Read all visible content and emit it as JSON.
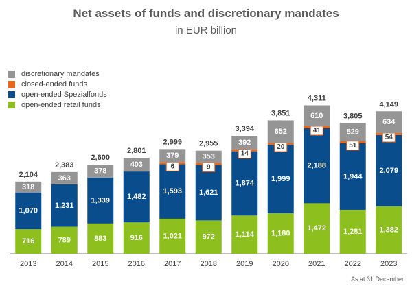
{
  "chart_data": {
    "type": "bar",
    "stacked": true,
    "title": "Net assets of funds and discretionary mandates",
    "subtitle": "in EUR billion",
    "categories": [
      "2013",
      "2014",
      "2015",
      "2016",
      "2017",
      "2018",
      "2019",
      "2020",
      "2021",
      "2022",
      "2023"
    ],
    "series": [
      {
        "name": "open-ended retail funds",
        "color": "#8dbf1e",
        "values": [
          716,
          789,
          883,
          916,
          1021,
          972,
          1114,
          1180,
          1472,
          1281,
          1382
        ],
        "labels": [
          "716",
          "789",
          "883",
          "916",
          "1,021",
          "972",
          "1,114",
          "1,180",
          "1,472",
          "1,281",
          "1,382"
        ]
      },
      {
        "name": "open-ended Spezialfonds",
        "color": "#0a4d8c",
        "values": [
          1070,
          1231,
          1339,
          1482,
          1593,
          1621,
          1874,
          1999,
          2188,
          1944,
          2079
        ],
        "labels": [
          "1,070",
          "1,231",
          "1,339",
          "1,482",
          "1,593",
          "1,621",
          "1,874",
          "1,999",
          "2,188",
          "1,944",
          "2,079"
        ]
      },
      {
        "name": "closed-ended funds",
        "color": "#e8671a",
        "values": [
          null,
          null,
          null,
          null,
          6,
          9,
          14,
          20,
          41,
          51,
          54
        ],
        "labels": [
          "",
          "",
          "",
          "",
          "6",
          "9",
          "14",
          "20",
          "41",
          "51",
          "54"
        ]
      },
      {
        "name": "discretionary mandates",
        "color": "#959595",
        "values": [
          318,
          363,
          378,
          403,
          379,
          353,
          392,
          652,
          610,
          529,
          634
        ],
        "labels": [
          "318",
          "363",
          "378",
          "403",
          "379",
          "353",
          "392",
          "652",
          "610",
          "529",
          "634"
        ]
      }
    ],
    "totals": [
      2104,
      2383,
      2600,
      2801,
      2999,
      2955,
      3394,
      3851,
      4311,
      3805,
      4149
    ],
    "total_labels": [
      "2,104",
      "2,383",
      "2,600",
      "2,801",
      "2,999",
      "2,955",
      "3,394",
      "3,851",
      "4,311",
      "3,805",
      "4,149"
    ],
    "legend_order": [
      "discretionary mandates",
      "closed-ended funds",
      "open-ended Spezialfonds",
      "open-ended retail funds"
    ],
    "legend_position": "top-left",
    "y_axis_visible": false,
    "grid": false
  },
  "footnote": "As at 31 December"
}
